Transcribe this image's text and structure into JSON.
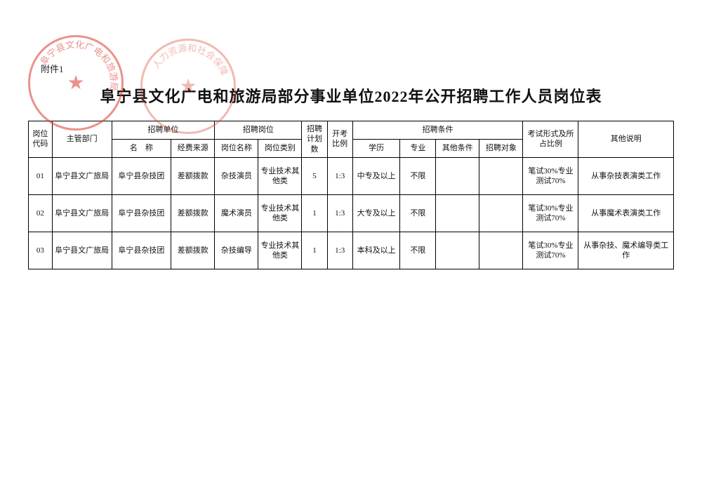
{
  "attachment_label": "附件1",
  "title": "阜宁县文化广电和旅游局部分事业单位2022年公开招聘工作人员岗位表",
  "stamp1_text": "阜宁县文化广电和旅游局",
  "stamp2_text": "人力资源和社会保障",
  "headers": {
    "code": "岗位代码",
    "dept": "主管部门",
    "unit_group": "招聘单位",
    "unit_name": "名　称",
    "unit_fund": "经费来源",
    "position_group": "招聘岗位",
    "position_name": "岗位名称",
    "position_type": "岗位类别",
    "plan": "招聘计划数",
    "ratio": "开考比例",
    "cond_group": "招聘条件",
    "edu": "学历",
    "major": "专业",
    "other_cond": "其他条件",
    "target": "招聘对象",
    "exam": "考试形式及所占比例",
    "note": "其他说明"
  },
  "rows": [
    {
      "code": "01",
      "dept": "阜宁县文广旅局",
      "unit_name": "阜宁县杂技团",
      "unit_fund": "差额拨款",
      "position_name": "杂技演员",
      "position_type": "专业技术其他类",
      "plan": "5",
      "ratio": "1:3",
      "edu": "中专及以上",
      "major": "不限",
      "other_cond": "",
      "target": "",
      "exam": "笔试30%专业测试70%",
      "note": "从事杂技表演类工作"
    },
    {
      "code": "02",
      "dept": "阜宁县文广旅局",
      "unit_name": "阜宁县杂技团",
      "unit_fund": "差额拨款",
      "position_name": "魔术演员",
      "position_type": "专业技术其他类",
      "plan": "1",
      "ratio": "1:3",
      "edu": "大专及以上",
      "major": "不限",
      "other_cond": "",
      "target": "",
      "exam": "笔试30%专业测试70%",
      "note": "从事魔术表演类工作"
    },
    {
      "code": "03",
      "dept": "阜宁县文广旅局",
      "unit_name": "阜宁县杂技团",
      "unit_fund": "差额拨款",
      "position_name": "杂技编导",
      "position_type": "专业技术其他类",
      "plan": "1",
      "ratio": "1:3",
      "edu": "本科及以上",
      "major": "不限",
      "other_cond": "",
      "target": "",
      "exam": "笔试30%专业测试70%",
      "note": "从事杂技、魔术编导类工作"
    }
  ],
  "style": {
    "page_bg": "#ffffff",
    "border_color": "#000000",
    "stamp_color": "#d93a2b",
    "title_fontsize": 22,
    "cell_fontsize": 11
  }
}
